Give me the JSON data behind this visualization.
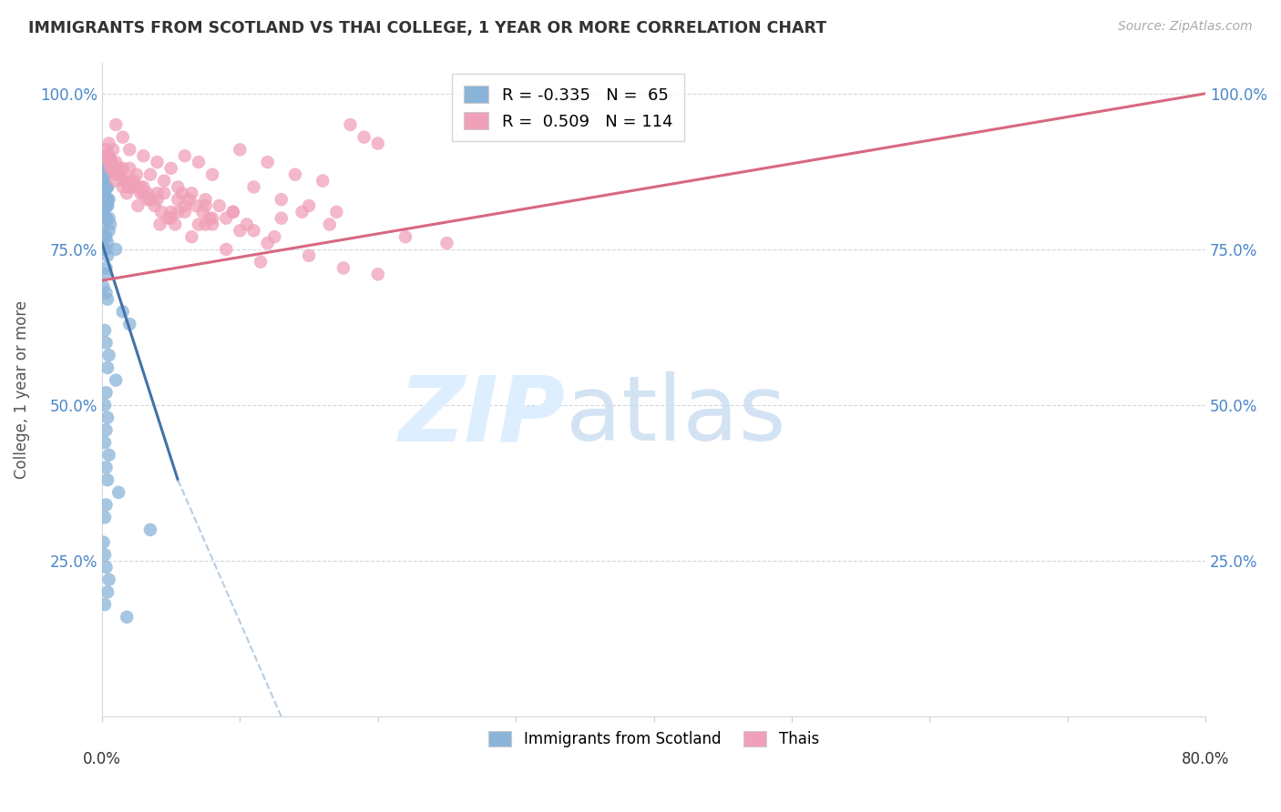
{
  "title": "IMMIGRANTS FROM SCOTLAND VS THAI COLLEGE, 1 YEAR OR MORE CORRELATION CHART",
  "source": "Source: ZipAtlas.com",
  "ylabel": "College, 1 year or more",
  "xlim": [
    0.0,
    80.0
  ],
  "ylim": [
    0.0,
    105.0
  ],
  "yticks": [
    0,
    25,
    50,
    75,
    100
  ],
  "ytick_labels": [
    "",
    "25.0%",
    "50.0%",
    "75.0%",
    "100.0%"
  ],
  "legend_blue_r": "-0.335",
  "legend_blue_n": "65",
  "legend_pink_r": "0.509",
  "legend_pink_n": "114",
  "blue_color": "#8ab4d8",
  "pink_color": "#f0a0b8",
  "blue_line_color": "#4472a8",
  "pink_line_color": "#d86880",
  "dashed_line_color": "#b8cce0",
  "blue_scatter_x": [
    0.2,
    0.5,
    0.3,
    0.4,
    0.1,
    0.2,
    0.3,
    0.4,
    0.5,
    0.6,
    0.3,
    0.2,
    0.4,
    0.5,
    0.3,
    0.2,
    0.1,
    0.3,
    0.4,
    0.2,
    0.3,
    0.1,
    0.2,
    0.4,
    0.3,
    0.5,
    0.2,
    0.3,
    0.4,
    0.3,
    0.2,
    0.1,
    0.3,
    0.4,
    1.5,
    2.0,
    0.2,
    0.3,
    0.5,
    0.4,
    1.0,
    0.3,
    0.2,
    0.4,
    0.3,
    0.2,
    0.5,
    0.3,
    0.4,
    1.2,
    0.3,
    0.2,
    3.5,
    0.1,
    0.2,
    0.3,
    0.5,
    0.4,
    0.2,
    1.8,
    0.3,
    0.4,
    0.2,
    0.3,
    1.0
  ],
  "blue_scatter_y": [
    88,
    90,
    87,
    85,
    86,
    84,
    83,
    82,
    80,
    79,
    88,
    87,
    85,
    83,
    82,
    80,
    79,
    77,
    76,
    75,
    85,
    84,
    83,
    82,
    80,
    78,
    77,
    75,
    74,
    72,
    71,
    69,
    68,
    67,
    65,
    63,
    62,
    60,
    58,
    56,
    54,
    52,
    50,
    48,
    46,
    44,
    42,
    40,
    38,
    36,
    34,
    32,
    30,
    28,
    26,
    24,
    22,
    20,
    18,
    16,
    85,
    83,
    82,
    80,
    75
  ],
  "pink_scatter_x": [
    0.3,
    0.5,
    1.0,
    0.8,
    1.5,
    2.0,
    3.0,
    4.0,
    5.0,
    6.0,
    7.0,
    8.0,
    10.0,
    12.0,
    14.0,
    16.0,
    18.0,
    20.0,
    0.5,
    1.0,
    1.5,
    2.0,
    2.5,
    3.5,
    4.5,
    5.5,
    6.5,
    7.5,
    8.5,
    9.5,
    11.0,
    13.0,
    15.0,
    17.0,
    19.0,
    0.4,
    0.6,
    0.8,
    1.2,
    1.6,
    2.2,
    2.8,
    3.3,
    3.8,
    4.3,
    4.8,
    5.3,
    5.8,
    6.3,
    6.8,
    7.3,
    7.8,
    9.0,
    10.5,
    12.5,
    0.3,
    0.5,
    0.7,
    1.0,
    1.3,
    1.6,
    1.9,
    2.3,
    2.8,
    3.3,
    4.0,
    5.0,
    6.0,
    8.0,
    11.0,
    14.5,
    22.0,
    25.0,
    0.4,
    0.7,
    1.0,
    2.0,
    3.0,
    1.5,
    4.5,
    5.5,
    7.5,
    9.5,
    13.0,
    16.5,
    2.5,
    3.0,
    5.0,
    7.0,
    0.5,
    2.3,
    4.0,
    6.0,
    8.0,
    10.0,
    12.0,
    15.0,
    17.5,
    0.6,
    1.0,
    1.8,
    2.6,
    4.2,
    6.5,
    9.0,
    11.5,
    20.0,
    2.0,
    3.5,
    5.5,
    7.5,
    1.2,
    0.9
  ],
  "pink_scatter_y": [
    90,
    92,
    95,
    91,
    93,
    91,
    90,
    89,
    88,
    90,
    89,
    87,
    91,
    89,
    87,
    86,
    95,
    92,
    90,
    89,
    88,
    88,
    87,
    87,
    86,
    85,
    84,
    83,
    82,
    81,
    85,
    83,
    82,
    81,
    93,
    90,
    89,
    88,
    87,
    86,
    85,
    84,
    83,
    82,
    81,
    80,
    79,
    84,
    83,
    82,
    81,
    80,
    80,
    79,
    77,
    91,
    90,
    89,
    88,
    87,
    86,
    85,
    85,
    85,
    84,
    83,
    81,
    81,
    79,
    78,
    81,
    77,
    76,
    90,
    89,
    88,
    86,
    85,
    85,
    84,
    83,
    82,
    81,
    80,
    79,
    85,
    84,
    80,
    79,
    89,
    86,
    84,
    82,
    80,
    78,
    76,
    74,
    72,
    88,
    86,
    84,
    82,
    79,
    77,
    75,
    73,
    71,
    85,
    83,
    81,
    79,
    88,
    87
  ],
  "blue_line_x0": 0.0,
  "blue_line_y0": 76.0,
  "blue_line_x1": 5.5,
  "blue_line_y1": 38.0,
  "blue_line_dashed_x1": 13.0,
  "blue_line_dashed_y1": 0.0,
  "pink_line_x0": 0.0,
  "pink_line_y0": 70.0,
  "pink_line_x1": 80.0,
  "pink_line_y1": 100.0
}
